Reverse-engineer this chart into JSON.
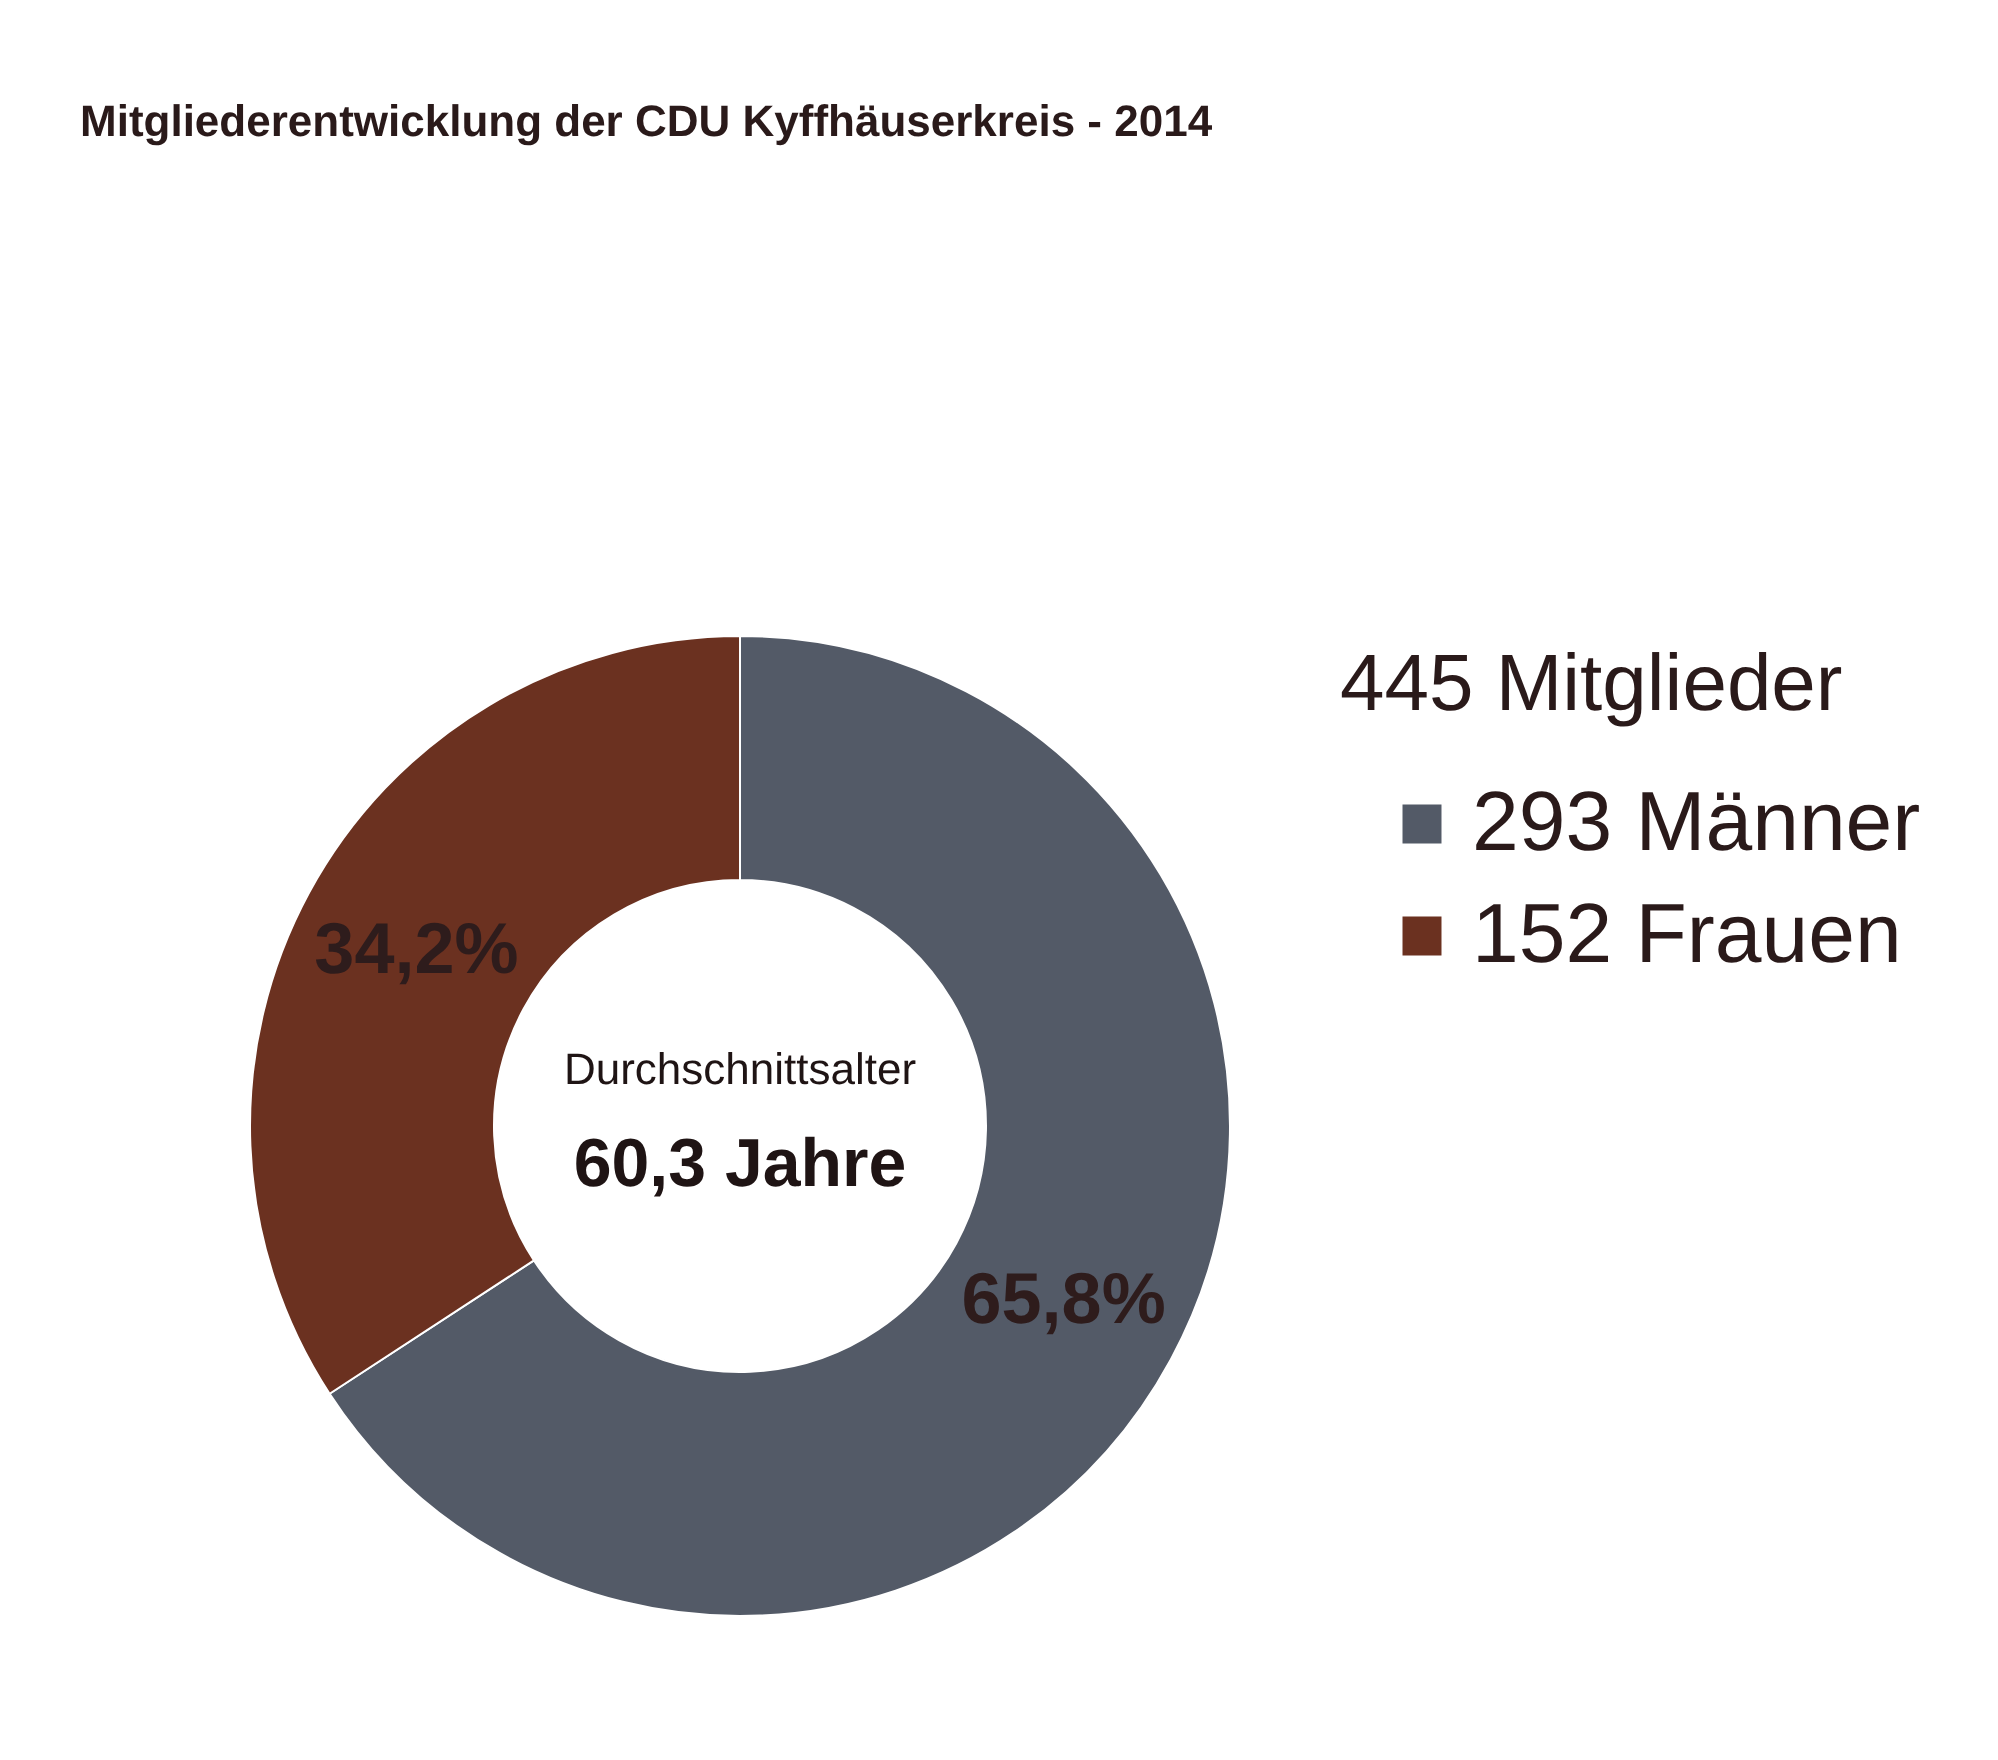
{
  "chart_data": {
    "type": "donut",
    "title": "Mitgliederentwicklung der CDU Kyffhäuserkreis - 2014",
    "legend_title": "445 Mitglieder",
    "categories": [
      "293 Männer",
      "152 Frauen"
    ],
    "values": [
      65.8,
      34.2
    ],
    "value_labels": [
      "65,8%",
      "34,2%"
    ],
    "colors": [
      "#535a67",
      "#6b3120"
    ],
    "annotations": [
      "Durchschnittsalter",
      "60,3 Jahre"
    ],
    "legend": "right"
  }
}
